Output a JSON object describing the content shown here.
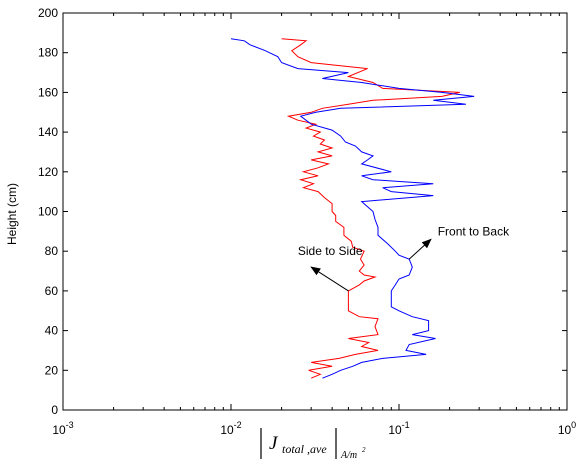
{
  "chart_data": {
    "type": "line",
    "title": "",
    "ylabel": "Height (cm)",
    "xlabel": {
      "main": "J",
      "subscript": "total ,ave",
      "unit": "A/m",
      "unit_exponent": "2"
    },
    "x_scale": "log",
    "xlim": [
      0.001,
      1
    ],
    "ylim": [
      0,
      200
    ],
    "x_ticks": [
      {
        "value": 0.001,
        "base": "10",
        "exp": "-3"
      },
      {
        "value": 0.01,
        "base": "10",
        "exp": "-2"
      },
      {
        "value": 0.1,
        "base": "10",
        "exp": "-1"
      },
      {
        "value": 1,
        "base": "10",
        "exp": "0"
      }
    ],
    "y_ticks": [
      0,
      20,
      40,
      60,
      80,
      100,
      120,
      140,
      160,
      180,
      200
    ],
    "grid": false,
    "legend": "none",
    "series": [
      {
        "color": "#ff0000",
        "points": [
          [
            0.03,
            16
          ],
          [
            0.034,
            18
          ],
          [
            0.029,
            20
          ],
          [
            0.04,
            22
          ],
          [
            0.03,
            24
          ],
          [
            0.044,
            26
          ],
          [
            0.055,
            28
          ],
          [
            0.075,
            30
          ],
          [
            0.06,
            32
          ],
          [
            0.066,
            34
          ],
          [
            0.05,
            36
          ],
          [
            0.075,
            38
          ],
          [
            0.072,
            42
          ],
          [
            0.075,
            46
          ],
          [
            0.058,
            47
          ],
          [
            0.05,
            50
          ],
          [
            0.05,
            60
          ],
          [
            0.058,
            63
          ],
          [
            0.062,
            65
          ],
          [
            0.072,
            67
          ],
          [
            0.062,
            68
          ],
          [
            0.058,
            70
          ],
          [
            0.062,
            73
          ],
          [
            0.059,
            76
          ],
          [
            0.062,
            80
          ],
          [
            0.053,
            82
          ],
          [
            0.052,
            85
          ],
          [
            0.047,
            88
          ],
          [
            0.047,
            92
          ],
          [
            0.042,
            95
          ],
          [
            0.042,
            98
          ],
          [
            0.04,
            100
          ],
          [
            0.04,
            104
          ],
          [
            0.036,
            107
          ],
          [
            0.033,
            110
          ],
          [
            0.027,
            112
          ],
          [
            0.031,
            114
          ],
          [
            0.026,
            116
          ],
          [
            0.033,
            118
          ],
          [
            0.027,
            120
          ],
          [
            0.033,
            122
          ],
          [
            0.038,
            124
          ],
          [
            0.03,
            126
          ],
          [
            0.04,
            128
          ],
          [
            0.033,
            130
          ],
          [
            0.04,
            132
          ],
          [
            0.034,
            134
          ],
          [
            0.036,
            136
          ],
          [
            0.031,
            138
          ],
          [
            0.034,
            140
          ],
          [
            0.028,
            142
          ],
          [
            0.032,
            144
          ],
          [
            0.025,
            146
          ],
          [
            0.022,
            148
          ],
          [
            0.03,
            150
          ],
          [
            0.035,
            152
          ],
          [
            0.05,
            154
          ],
          [
            0.07,
            156
          ],
          [
            0.18,
            158
          ],
          [
            0.23,
            160
          ],
          [
            0.08,
            162
          ],
          [
            0.07,
            165
          ],
          [
            0.05,
            168
          ],
          [
            0.065,
            172
          ],
          [
            0.03,
            175
          ],
          [
            0.025,
            178
          ],
          [
            0.023,
            181
          ],
          [
            0.026,
            184
          ],
          [
            0.028,
            186
          ],
          [
            0.02,
            187
          ]
        ]
      },
      {
        "color": "#0000ff",
        "points": [
          [
            0.035,
            16
          ],
          [
            0.04,
            18
          ],
          [
            0.045,
            20
          ],
          [
            0.053,
            22
          ],
          [
            0.06,
            24
          ],
          [
            0.08,
            26
          ],
          [
            0.145,
            28
          ],
          [
            0.11,
            30
          ],
          [
            0.115,
            33
          ],
          [
            0.165,
            36
          ],
          [
            0.12,
            38
          ],
          [
            0.15,
            40
          ],
          [
            0.15,
            45
          ],
          [
            0.12,
            47
          ],
          [
            0.1,
            50
          ],
          [
            0.09,
            52
          ],
          [
            0.09,
            60
          ],
          [
            0.095,
            63
          ],
          [
            0.1,
            66
          ],
          [
            0.115,
            68
          ],
          [
            0.12,
            72
          ],
          [
            0.115,
            76
          ],
          [
            0.1,
            78
          ],
          [
            0.095,
            80
          ],
          [
            0.085,
            84
          ],
          [
            0.075,
            88
          ],
          [
            0.075,
            92
          ],
          [
            0.072,
            96
          ],
          [
            0.07,
            100
          ],
          [
            0.06,
            105
          ],
          [
            0.16,
            108
          ],
          [
            0.09,
            110
          ],
          [
            0.08,
            112
          ],
          [
            0.16,
            114
          ],
          [
            0.07,
            116
          ],
          [
            0.06,
            118
          ],
          [
            0.09,
            120
          ],
          [
            0.06,
            124
          ],
          [
            0.065,
            126
          ],
          [
            0.07,
            128
          ],
          [
            0.06,
            130
          ],
          [
            0.055,
            133
          ],
          [
            0.048,
            135
          ],
          [
            0.045,
            138
          ],
          [
            0.04,
            141
          ],
          [
            0.03,
            144
          ],
          [
            0.026,
            148
          ],
          [
            0.032,
            150
          ],
          [
            0.045,
            152
          ],
          [
            0.25,
            154
          ],
          [
            0.16,
            156
          ],
          [
            0.28,
            158
          ],
          [
            0.18,
            160
          ],
          [
            0.1,
            162
          ],
          [
            0.06,
            165
          ],
          [
            0.035,
            167
          ],
          [
            0.05,
            170
          ],
          [
            0.025,
            172
          ],
          [
            0.02,
            175
          ],
          [
            0.019,
            178
          ],
          [
            0.016,
            181
          ],
          [
            0.013,
            184
          ],
          [
            0.012,
            186
          ],
          [
            0.01,
            187
          ]
        ]
      }
    ],
    "annotations": [
      {
        "text": "Side to Side",
        "text_x": 0.025,
        "text_y": 78,
        "arrow_from": [
          0.05,
          60
        ],
        "arrow_to": [
          0.03,
          72
        ]
      },
      {
        "text": "Front to Back",
        "text_x": 0.17,
        "text_y": 88,
        "arrow_from": [
          0.115,
          76
        ],
        "arrow_to": [
          0.155,
          86
        ]
      }
    ]
  }
}
